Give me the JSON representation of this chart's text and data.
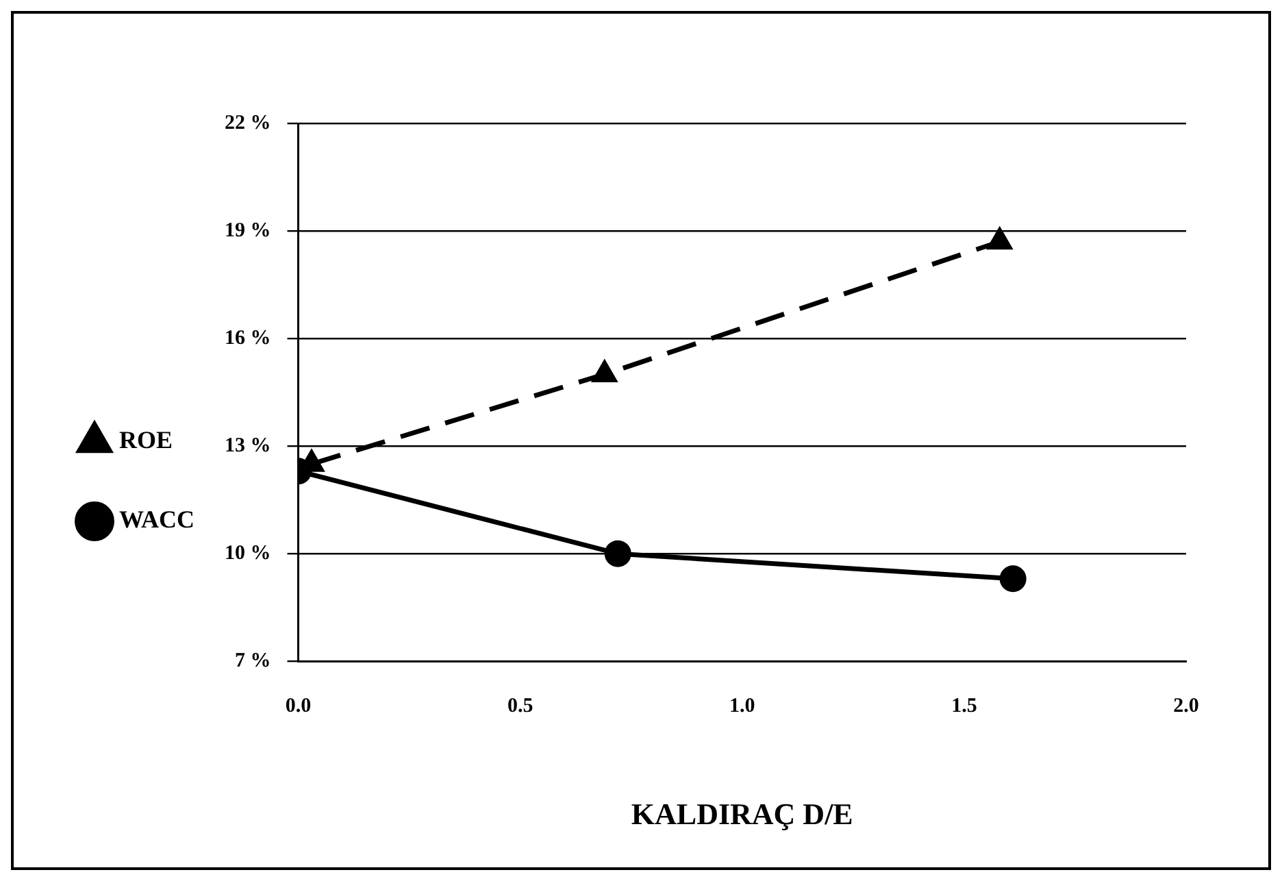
{
  "chart_data": {
    "type": "line",
    "xlabel": "KALDIRAÇ D/E",
    "series": [
      {
        "name": "ROE",
        "color": "#000000",
        "marker": "triangle",
        "line_style": "dashed",
        "x": [
          0.03,
          0.69,
          1.58
        ],
        "values": [
          12.5,
          15.0,
          18.7
        ]
      },
      {
        "name": "WACC",
        "color": "#000000",
        "marker": "circle",
        "line_style": "solid",
        "x": [
          0.0,
          0.72,
          1.61
        ],
        "values": [
          12.3,
          10.0,
          9.3
        ]
      }
    ],
    "xlim": [
      0,
      2
    ],
    "xticks": [
      {
        "value": 0,
        "label": "0.0"
      },
      {
        "value": 0.5,
        "label": "0.5"
      },
      {
        "value": 1,
        "label": "1.0"
      },
      {
        "value": 1.5,
        "label": "1.5"
      },
      {
        "value": 2,
        "label": "2.0"
      }
    ],
    "ylim": [
      7,
      22
    ],
    "yticks": [
      {
        "value": 7,
        "label": "7 %"
      },
      {
        "value": 10,
        "label": "10 %"
      },
      {
        "value": 13,
        "label": "13 %"
      },
      {
        "value": 16,
        "label": "16 %"
      },
      {
        "value": 19,
        "label": "19 %"
      },
      {
        "value": 22,
        "label": "22 %"
      }
    ],
    "grid": "y",
    "legend": "left"
  }
}
